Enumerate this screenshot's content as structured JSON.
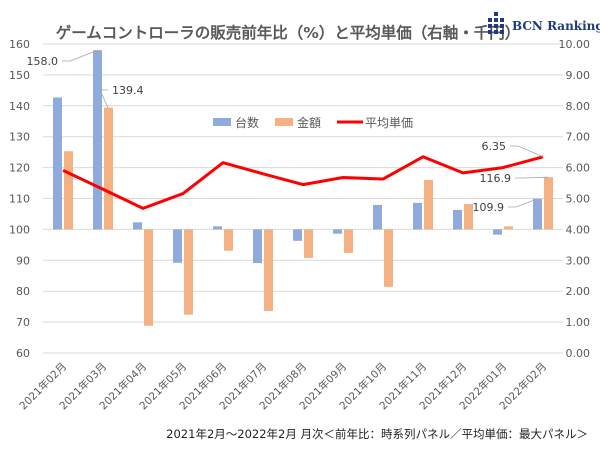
{
  "logo": {
    "text": "BCN Ranking",
    "color": "#1f3b7a"
  },
  "footer": "2021年2月～2022年2月 月次＜前年比：時系列パネル／平均単価：最大パネル＞",
  "chart_data": {
    "type": "bar",
    "title": "ゲームコントローラの販売前年比（%）と平均単価（右軸・千円）",
    "categories": [
      "2021年02月",
      "2021年03月",
      "2021年04月",
      "2021年05月",
      "2021年06月",
      "2021年07月",
      "2021年08月",
      "2021年09月",
      "2021年10月",
      "2021年11月",
      "2021年12月",
      "2022年01月",
      "2022年02月"
    ],
    "y_left": {
      "min": 60,
      "max": 160,
      "step": 10,
      "ticks": [
        "60",
        "70",
        "80",
        "90",
        "100",
        "110",
        "120",
        "130",
        "140",
        "150",
        "160"
      ],
      "baseline": 100
    },
    "y_right": {
      "min": 0,
      "max": 10,
      "step": 1,
      "ticks": [
        "0.00",
        "1.00",
        "2.00",
        "3.00",
        "4.00",
        "5.00",
        "6.00",
        "7.00",
        "8.00",
        "9.00",
        "10.00"
      ]
    },
    "grid": true,
    "legend_position": "top-center",
    "series": [
      {
        "name": "台数",
        "type": "bar",
        "axis": "left",
        "color": "#8faadc",
        "values": [
          142.7,
          158.0,
          102.3,
          89.2,
          101.0,
          89.1,
          96.3,
          98.6,
          107.9,
          108.6,
          106.3,
          98.3,
          109.9
        ]
      },
      {
        "name": "金額",
        "type": "bar",
        "axis": "left",
        "color": "#f4b183",
        "values": [
          125.3,
          139.4,
          68.8,
          72.4,
          93.1,
          73.6,
          90.8,
          92.4,
          81.4,
          116.0,
          108.2,
          101.0,
          116.9
        ]
      },
      {
        "name": "平均単価",
        "type": "line",
        "axis": "right",
        "color": "#ff0000",
        "values": [
          5.91,
          5.3,
          4.68,
          5.16,
          6.16,
          5.8,
          5.45,
          5.68,
          5.63,
          6.35,
          5.83,
          6.0,
          6.35
        ]
      }
    ],
    "data_labels": [
      {
        "series": 0,
        "index": 1,
        "text": "158.0"
      },
      {
        "series": 1,
        "index": 1,
        "text": "139.4"
      },
      {
        "series": 2,
        "index": 12,
        "text": "6.35"
      },
      {
        "series": 1,
        "index": 12,
        "text": "116.9"
      },
      {
        "series": 0,
        "index": 12,
        "text": "109.9"
      }
    ]
  }
}
